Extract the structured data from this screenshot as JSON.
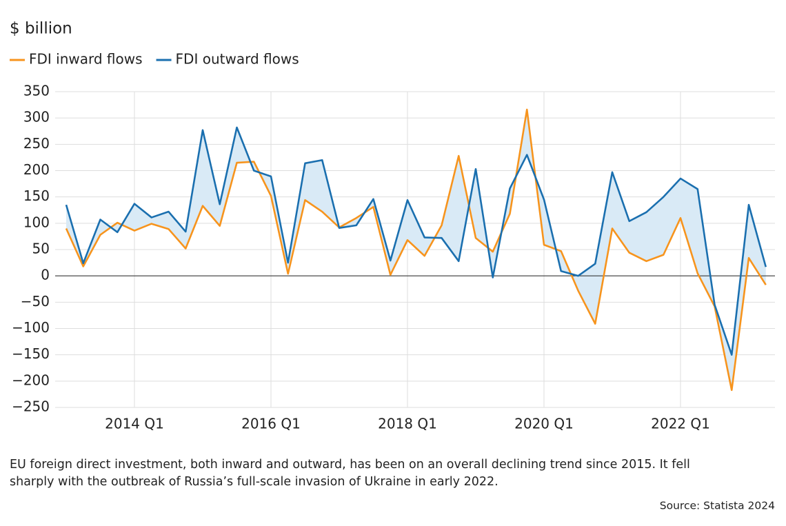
{
  "chart_data": {
    "type": "line",
    "ylabel": "$ billion",
    "categories": [
      null,
      null,
      null,
      null,
      "2014 Q1",
      null,
      null,
      null,
      null,
      null,
      null,
      null,
      "2016 Q1",
      null,
      null,
      null,
      null,
      null,
      null,
      null,
      "2018 Q1",
      null,
      null,
      null,
      null,
      null,
      null,
      null,
      "2020 Q1",
      null,
      null,
      null,
      null,
      null,
      null,
      null,
      "2022 Q1",
      null,
      null,
      null,
      null,
      null
    ],
    "series": [
      {
        "name": "FDI inward flows",
        "color": "#f7941d",
        "values": [
          90,
          18,
          78,
          101,
          86,
          99,
          89,
          52,
          133,
          95,
          215,
          217,
          152,
          4,
          144,
          122,
          92,
          110,
          131,
          2,
          68,
          38,
          96,
          228,
          72,
          46,
          118,
          316,
          59,
          47,
          -28,
          -91,
          90,
          44,
          28,
          40,
          110,
          5,
          -58,
          -217,
          34,
          -17
        ]
      },
      {
        "name": "FDI outward flows",
        "color": "#1a6faf",
        "values": [
          135,
          24,
          107,
          83,
          137,
          111,
          122,
          84,
          277,
          136,
          282,
          200,
          189,
          25,
          214,
          220,
          91,
          96,
          146,
          29,
          144,
          73,
          72,
          28,
          203,
          -3,
          166,
          230,
          145,
          9,
          0,
          23,
          197,
          104,
          121,
          150,
          185,
          165,
          -55,
          -150,
          135,
          17
        ]
      }
    ],
    "fill_between_color": "#d9eaf6",
    "ylim": [
      -250,
      350
    ],
    "yticks": [
      {
        "value": -250,
        "label": "−250"
      },
      {
        "value": -200,
        "label": "−200"
      },
      {
        "value": -150,
        "label": "−150"
      },
      {
        "value": -100,
        "label": "−100"
      },
      {
        "value": -50,
        "label": "−50"
      },
      0,
      50,
      100,
      150,
      200,
      250,
      300,
      350
    ],
    "grid": true,
    "legend": "top-left",
    "caption": [
      "EU foreign direct investment, both inward and outward, has been on an overall declining trend since 2015. It fell",
      "sharply with the outbreak of Russia’s full-scale invasion of Ukraine in early 2022."
    ],
    "source": "Source: Statista 2024"
  }
}
